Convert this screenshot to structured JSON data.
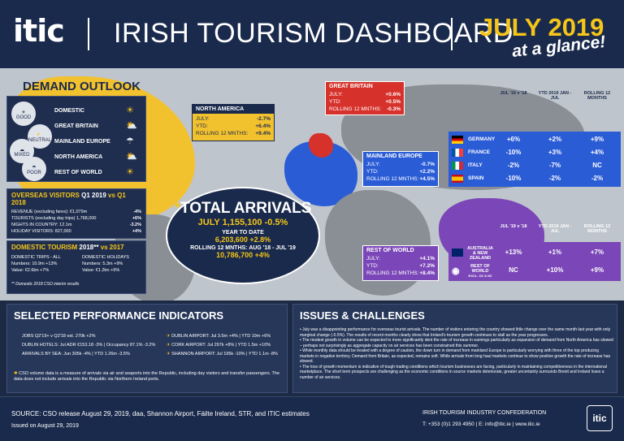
{
  "header": {
    "logo": "itic",
    "title": "IRISH TOURISM DASHBOARD",
    "date": "JULY 2019",
    "subtitle": "at a glance!"
  },
  "demand": {
    "title": "DEMAND OUTLOOK",
    "markets": [
      "DOMESTIC",
      "GREAT BRITAIN",
      "MAINLAND EUROPE",
      "NORTH AMERICA",
      "REST OF WORLD"
    ],
    "legend": [
      "GOOD",
      "NEUTRAL",
      "MIXED",
      "POOR"
    ]
  },
  "north_america": {
    "title": "NORTH AMERICA",
    "rows": [
      [
        "JULY:",
        "-2.7%"
      ],
      [
        "YTD:",
        "+6.4%"
      ],
      [
        "ROLLING 12 MNTHS:",
        "+9.4%"
      ]
    ]
  },
  "great_britain": {
    "title": "GREAT BRITAIN",
    "rows": [
      [
        "JULY:",
        "+0.6%"
      ],
      [
        "YTD:",
        "+0.5%"
      ],
      [
        "ROLLING 12 MNTHS:",
        "-0.3%"
      ]
    ]
  },
  "mainland_europe": {
    "title": "MAINLAND EUROPE",
    "rows": [
      [
        "JULY:",
        "-0.7%"
      ],
      [
        "YTD:",
        "+2.2%"
      ],
      [
        "ROLLING 12 MNTHS:",
        "+4.5%"
      ]
    ]
  },
  "rest_of_world": {
    "title": "REST OF WORLD",
    "rows": [
      [
        "JULY:",
        "+4.1%"
      ],
      [
        "YTD:",
        "+7.2%"
      ],
      [
        "ROLLING 12 MNTHS:",
        "+8.4%"
      ]
    ]
  },
  "europe_table": {
    "headers": [
      "JUL '19 v '18",
      "YTD 2019 JAN - JUL",
      "ROLLING 12 MONTHS"
    ],
    "rows": [
      [
        "GERMANY",
        "+6%",
        "+2%",
        "+9%"
      ],
      [
        "FRANCE",
        "-10%",
        "+3%",
        "+4%"
      ],
      [
        "ITALY",
        "-2%",
        "-7%",
        "NC"
      ],
      [
        "SPAIN",
        "-10%",
        "-2%",
        "-2%"
      ]
    ]
  },
  "row_table": {
    "headers": [
      "JUL '19 v '18",
      "YTD 2019 JAN - JUL",
      "ROLLING 12 MONTHS"
    ],
    "rows": [
      [
        "AUSTRALIA & NEW ZEALAND",
        "+13%",
        "+1%",
        "+7%"
      ],
      [
        "REST OF WORLD",
        "NC",
        "+10%",
        "+9%"
      ]
    ],
    "row_sub": "EXCL. OZ & NZ"
  },
  "overseas": {
    "title": "OVERSEAS VISITORS",
    "period": "Q1 2019",
    "vs": "vs Q1 2018",
    "rows": [
      [
        "REVENUE (excluding fares): €1,079m",
        "-4%"
      ],
      [
        "TOURISTS (excluding day trips) 1,768,000",
        "+6%"
      ],
      [
        "NIGHTS IN COUNTRY: 12.1m",
        "-3.2%"
      ],
      [
        "HOLIDAY VISITORS: 827,000",
        "+4%"
      ]
    ]
  },
  "domestic": {
    "title": "DOMESTIC TOURISM",
    "period": "2018**",
    "vs": "vs 2017",
    "col1_title": "DOMESTIC TRIPS - ALL",
    "col1": [
      "Numbers: 10.9m +13%",
      "Value: €2.6bn +7%"
    ],
    "col2_title": "DOMESTIC HOLIDAYS",
    "col2": [
      "Numbers: 5.3m +9%",
      "Value: €1.2bn +9%"
    ],
    "note": "** Domestic 2018 CSO interim results"
  },
  "total": {
    "title": "TOTAL ARRIVALS",
    "july": "JULY 1,155,100 -0.5%",
    "ytd_label": "YEAR TO DATE",
    "ytd": "6,203,600 +2.8%",
    "rolling_label": "ROLLING 12 MNTHS: AUG '18 - JUL '19",
    "rolling": "10,786,700 +4%"
  },
  "spi": {
    "title": "SELECTED PERFORMANCE INDICATORS",
    "left": [
      "JOBS Q2'19+ v Q2'18 est. 270k +2%",
      "DUBLIN HOTELS: Jul ADR €153.18 -3% | Occupancy 87.1% -3.2%",
      "ARRIVALS BY SEA: Jun 305k -4% | YTD 1.26m -3.5%"
    ],
    "right": [
      "DUBLIN AIRPORT: Jul 3.5m +4% | YTD 19m +6%",
      "CORK AIRPORT: Jul 297k +8% | YTD 1.5m +10%",
      "SHANNON AIRPORT: Jul 195k -10% | YTD 1.1m -8%"
    ],
    "note": "CSO volume data is a measure of arrivals via air and seaports into the Republic, including day visitors and transfer passengers. The data does not include arrivals into the Republic via Northern Ireland ports."
  },
  "issues": {
    "title": "ISSUES & CHALLENGES",
    "bullets": [
      "July was a disappointing performance for overseas tourist arrivals. The number of visitors entering the country showed little change over the same month last year with only marginal change (-0.5%). The results of recent months clearly show that Ireland's tourism growth continues to stall as the year progresses.",
      "The modest growth in volume can be expected to more significantly dent the rate of increase in earnings particularly as expansion of demand from North America has slowed – perhaps not surprisingly as aggregate capacity on air services has been constrained this summer.",
      "While monthly data should be treated with a degree of caution, the down turn in demand from mainland Europe is particularly worrying with three of the top producing markets in negative territory. Demand from Britain, as expected, remains soft. While arrivals from long haul markets continue to show positive growth the rate of increase has slowed.",
      "The loss of growth momentum is indicative of tough trading conditions which tourism businesses are facing, particularly in maintaining competitiveness in the international marketplace. The short term prospects are challenging as the economic conditions in source markets deteriorate, greater uncertainty surrounds Brexit and Ireland loses a number of air services."
    ]
  },
  "footer": {
    "source": "SOURCE: CSO release August 29, 2019, daa, Shannon Airport, Fáilte Ireland, STR, and ITIC estimates",
    "issued": "Issued on August 29, 2019",
    "org": "IRISH TOURISM INDUSTRY CONFEDERATION",
    "contact": "T: +353 (0)1 293 4950 | E: info@itic.ie | www.itic.ie",
    "logo": "itic"
  }
}
